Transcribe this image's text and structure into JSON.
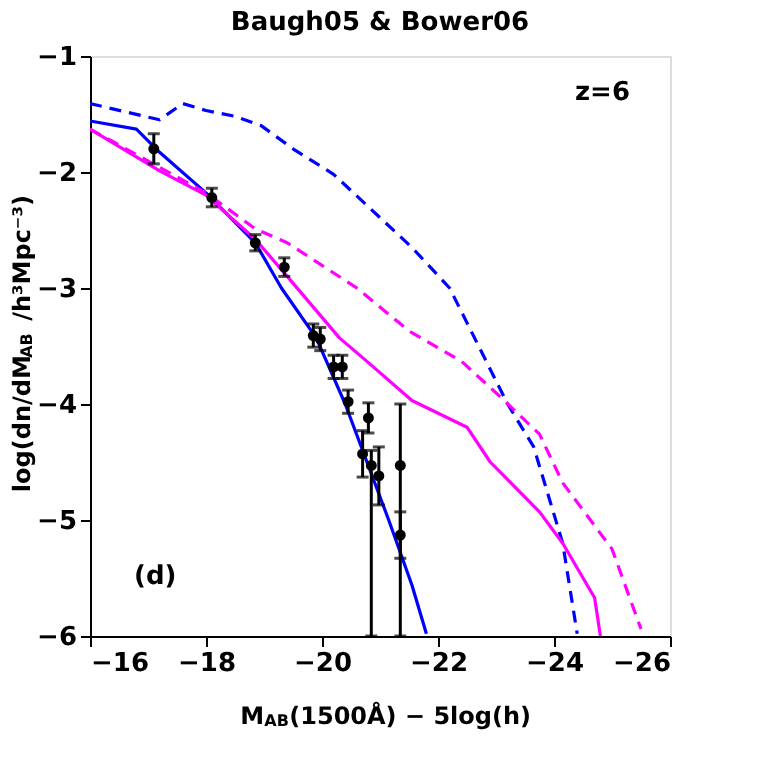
{
  "chart_data": {
    "type": "line",
    "title": "Baugh05 & Bower06",
    "xlabel": "M$_{AB}$(1500Å) − 5log(h)",
    "ylabel": "log(dn/dM$_{AB}$ /h³Mpc⁻³)",
    "xlim": [
      -16,
      -26
    ],
    "ylim": [
      -6,
      -1
    ],
    "xticks": [
      -16,
      -18,
      -20,
      -22,
      -24,
      -26
    ],
    "yticks": [
      -6,
      -5,
      -4,
      -3,
      -2,
      -1
    ],
    "grid": false,
    "annotations": [
      "z=6",
      "(d)"
    ],
    "series": [
      {
        "color": "#0000ff",
        "line_style": "solid",
        "x": [
          -16,
          -16.8,
          -17.2,
          -18.0,
          -18.85,
          -19.3,
          -19.9,
          -20.4,
          -21.15,
          -21.55,
          -21.8
        ],
        "values": [
          -1.56,
          -1.63,
          -1.83,
          -2.18,
          -2.61,
          -3.0,
          -3.43,
          -4.0,
          -5.0,
          -5.56,
          -5.98
        ]
      },
      {
        "color": "#0000ff",
        "line_style": "dashed",
        "x": [
          -16,
          -17.2,
          -17.6,
          -18.0,
          -18.5,
          -18.95,
          -19.5,
          -20.2,
          -21.55,
          -22.2,
          -22.7,
          -23.2,
          -23.65,
          -24.15,
          -24.4
        ],
        "values": [
          -1.41,
          -1.55,
          -1.41,
          -1.47,
          -1.52,
          -1.6,
          -1.8,
          -2.02,
          -2.65,
          -3.0,
          -3.5,
          -4.0,
          -4.37,
          -5.2,
          -5.98
        ]
      },
      {
        "color": "#ff00ff",
        "line_style": "solid",
        "x": [
          -16,
          -17.2,
          -18.0,
          -18.85,
          -19.4,
          -20.3,
          -20.7,
          -21.55,
          -22.5,
          -22.9,
          -23.75,
          -24.15,
          -24.7,
          -24.8
        ],
        "values": [
          -1.63,
          -1.99,
          -2.2,
          -2.58,
          -2.9,
          -3.43,
          -3.6,
          -3.97,
          -4.2,
          -4.5,
          -4.93,
          -5.2,
          -5.67,
          -6.0
        ]
      },
      {
        "color": "#ff00ff",
        "line_style": "dashed",
        "x": [
          -16,
          -18.0,
          -18.85,
          -19.4,
          -20.6,
          -21.5,
          -22.4,
          -23.1,
          -23.75,
          -24.15,
          -25.0,
          -25.5
        ],
        "values": [
          -1.63,
          -2.18,
          -2.49,
          -2.61,
          -3.0,
          -3.37,
          -3.63,
          -3.95,
          -4.26,
          -4.68,
          -5.25,
          -5.94
        ]
      },
      {
        "type": "scatter",
        "color": "#000000",
        "marker": "circle",
        "x": [
          -17.1,
          -18.1,
          -18.85,
          -19.35,
          -19.85,
          -19.97,
          -20.2,
          -20.35,
          -20.45,
          -20.7,
          -20.8,
          -20.85,
          -20.98,
          -21.35,
          -21.35
        ],
        "values": [
          -1.8,
          -2.22,
          -2.61,
          -2.82,
          -3.41,
          -3.44,
          -3.68,
          -3.68,
          -3.98,
          -4.43,
          -4.12,
          -4.53,
          -4.62,
          -4.53,
          -5.13
        ],
        "errors": [
          0.13,
          0.08,
          0.07,
          0.08,
          0.1,
          0.1,
          0.1,
          0.1,
          0.1,
          0.2,
          0.13,
          [
            -6,
            -4.4
          ],
          0.25,
          [
            -6,
            -4.0
          ],
          0.2
        ]
      }
    ]
  }
}
